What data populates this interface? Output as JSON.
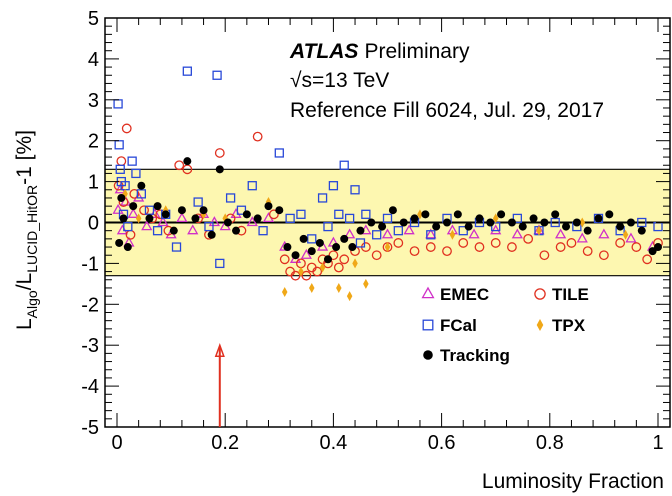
{
  "chart_data": {
    "type": "scatter",
    "title": "",
    "xlabel": "Luminosity Fraction",
    "ylabel": {
      "base": "L",
      "sub1": "Algo",
      "mid": "/L",
      "sub2": "LUCID_HitOR",
      "tail": "-1 [%]"
    },
    "xlim": [
      0,
      1
    ],
    "ylim": [
      -5,
      5
    ],
    "x_ticks": [
      "0",
      "0.2",
      "0.4",
      "0.6",
      "0.8",
      "1"
    ],
    "y_ticks": [
      "-5",
      "-4",
      "-3",
      "-2",
      "-1",
      "0",
      "1",
      "2",
      "3",
      "4",
      "5"
    ],
    "grid": false,
    "legend_position": "bottom-right",
    "band": {
      "ymin": -1.3,
      "ymax": 1.3,
      "color": "#fdf7b0"
    },
    "reference_line": 0,
    "arrow": {
      "x": 0.19,
      "y_from": -5,
      "y_to": -3,
      "color": "#e03020"
    },
    "annotations": {
      "experiment": "ATLAS",
      "status": "Preliminary",
      "energy_sqrt": "√",
      "energy_rest": "s=13 TeV",
      "fill": "Reference Fill 6024, Jul. 29, 2017"
    },
    "series": [
      {
        "name": "EMEC",
        "marker": "triangle",
        "color": "#d030c8",
        "points": [
          [
            0.002,
            0.3
          ],
          [
            0.006,
            0.8
          ],
          [
            0.01,
            -0.2
          ],
          [
            0.016,
            0.5
          ],
          [
            0.022,
            -0.5
          ],
          [
            0.03,
            0.2
          ],
          [
            0.04,
            0.6
          ],
          [
            0.055,
            -0.1
          ],
          [
            0.07,
            0.2
          ],
          [
            0.085,
            0.0
          ],
          [
            0.1,
            -0.3
          ],
          [
            0.12,
            0.1
          ],
          [
            0.14,
            -0.2
          ],
          [
            0.16,
            0.2
          ],
          [
            0.18,
            0.0
          ],
          [
            0.2,
            -0.1
          ],
          [
            0.22,
            0.2
          ],
          [
            0.25,
            0.0
          ],
          [
            0.28,
            0.1
          ],
          [
            0.31,
            -0.6
          ],
          [
            0.33,
            -0.9
          ],
          [
            0.35,
            -0.8
          ],
          [
            0.38,
            -0.6
          ],
          [
            0.4,
            -0.5
          ],
          [
            0.43,
            -0.3
          ],
          [
            0.46,
            -0.2
          ],
          [
            0.5,
            -0.3
          ],
          [
            0.54,
            -0.2
          ],
          [
            0.58,
            -0.3
          ],
          [
            0.62,
            -0.2
          ],
          [
            0.66,
            -0.3
          ],
          [
            0.7,
            -0.2
          ],
          [
            0.74,
            -0.3
          ],
          [
            0.78,
            -0.2
          ],
          [
            0.82,
            -0.3
          ],
          [
            0.86,
            -0.4
          ],
          [
            0.9,
            -0.3
          ],
          [
            0.95,
            -0.4
          ],
          [
            0.99,
            -0.6
          ]
        ]
      },
      {
        "name": "TILE",
        "marker": "circle-open",
        "color": "#e03020",
        "points": [
          [
            0.003,
            0.9
          ],
          [
            0.008,
            1.5
          ],
          [
            0.012,
            0.5
          ],
          [
            0.018,
            2.3
          ],
          [
            0.025,
            -0.3
          ],
          [
            0.032,
            0.7
          ],
          [
            0.05,
            0.3
          ],
          [
            0.065,
            0.1
          ],
          [
            0.08,
            0.2
          ],
          [
            0.095,
            -0.2
          ],
          [
            0.115,
            1.4
          ],
          [
            0.13,
            1.3
          ],
          [
            0.15,
            0.1
          ],
          [
            0.17,
            -0.3
          ],
          [
            0.19,
            1.7
          ],
          [
            0.21,
            0.1
          ],
          [
            0.23,
            -0.2
          ],
          [
            0.26,
            2.1
          ],
          [
            0.29,
            0.2
          ],
          [
            0.31,
            -0.9
          ],
          [
            0.32,
            -1.2
          ],
          [
            0.33,
            -1.3
          ],
          [
            0.34,
            -1.0
          ],
          [
            0.35,
            -1.3
          ],
          [
            0.36,
            -1.1
          ],
          [
            0.37,
            -1.2
          ],
          [
            0.38,
            -0.9
          ],
          [
            0.39,
            -1.0
          ],
          [
            0.4,
            -0.8
          ],
          [
            0.41,
            -1.1
          ],
          [
            0.42,
            -0.9
          ],
          [
            0.44,
            -0.7
          ],
          [
            0.46,
            -0.6
          ],
          [
            0.48,
            -0.8
          ],
          [
            0.5,
            -0.6
          ],
          [
            0.52,
            -0.5
          ],
          [
            0.55,
            -0.7
          ],
          [
            0.58,
            -0.6
          ],
          [
            0.61,
            -0.7
          ],
          [
            0.64,
            -0.5
          ],
          [
            0.67,
            -0.6
          ],
          [
            0.7,
            -0.5
          ],
          [
            0.73,
            -0.6
          ],
          [
            0.76,
            -0.4
          ],
          [
            0.79,
            -0.8
          ],
          [
            0.82,
            -0.6
          ],
          [
            0.84,
            -0.5
          ],
          [
            0.87,
            -0.7
          ],
          [
            0.9,
            -0.8
          ],
          [
            0.93,
            -0.5
          ],
          [
            0.96,
            -0.6
          ],
          [
            0.98,
            -0.9
          ],
          [
            1.0,
            -0.5
          ]
        ]
      },
      {
        "name": "FCal",
        "marker": "square-open",
        "color": "#2848d8",
        "points": [
          [
            0.002,
            2.9
          ],
          [
            0.004,
            1.9
          ],
          [
            0.006,
            1.3
          ],
          [
            0.008,
            1.0
          ],
          [
            0.012,
            0.2
          ],
          [
            0.015,
            0.9
          ],
          [
            0.02,
            -0.1
          ],
          [
            0.028,
            1.5
          ],
          [
            0.035,
            1.2
          ],
          [
            0.045,
            0.7
          ],
          [
            0.06,
            0.3
          ],
          [
            0.075,
            -0.2
          ],
          [
            0.09,
            0.2
          ],
          [
            0.11,
            -0.6
          ],
          [
            0.13,
            3.7
          ],
          [
            0.15,
            0.5
          ],
          [
            0.17,
            -0.1
          ],
          [
            0.185,
            3.6
          ],
          [
            0.19,
            -1.0
          ],
          [
            0.21,
            0.6
          ],
          [
            0.23,
            0.3
          ],
          [
            0.25,
            0.9
          ],
          [
            0.27,
            -0.2
          ],
          [
            0.3,
            1.7
          ],
          [
            0.32,
            0.1
          ],
          [
            0.34,
            0.2
          ],
          [
            0.36,
            -0.4
          ],
          [
            0.38,
            0.6
          ],
          [
            0.39,
            -0.1
          ],
          [
            0.4,
            0.9
          ],
          [
            0.41,
            0.2
          ],
          [
            0.42,
            1.4
          ],
          [
            0.43,
            0.1
          ],
          [
            0.44,
            0.8
          ],
          [
            0.45,
            -0.5
          ],
          [
            0.46,
            0.2
          ],
          [
            0.48,
            -0.3
          ],
          [
            0.5,
            0.1
          ],
          [
            0.52,
            -0.2
          ],
          [
            0.55,
            0.0
          ],
          [
            0.58,
            -0.3
          ],
          [
            0.61,
            0.1
          ],
          [
            0.64,
            -0.2
          ],
          [
            0.67,
            0.0
          ],
          [
            0.7,
            -0.1
          ],
          [
            0.74,
            0.1
          ],
          [
            0.78,
            -0.2
          ],
          [
            0.81,
            0.0
          ],
          [
            0.85,
            -0.1
          ],
          [
            0.89,
            0.1
          ],
          [
            0.93,
            -0.2
          ],
          [
            0.97,
            0.0
          ],
          [
            1.0,
            -0.1
          ]
        ]
      },
      {
        "name": "TPX",
        "marker": "diamond",
        "color": "#f0a818",
        "points": [
          [
            0.015,
            0.7
          ],
          [
            0.04,
            0.1
          ],
          [
            0.09,
            0.3
          ],
          [
            0.16,
            0.2
          ],
          [
            0.2,
            0.1
          ],
          [
            0.28,
            0.5
          ],
          [
            0.31,
            -1.7
          ],
          [
            0.36,
            -1.6
          ],
          [
            0.41,
            -1.6
          ],
          [
            0.43,
            -1.8
          ],
          [
            0.46,
            -1.5
          ],
          [
            0.34,
            -1.2
          ],
          [
            0.38,
            -1.1
          ],
          [
            0.44,
            -1.0
          ],
          [
            0.5,
            -0.6
          ],
          [
            0.56,
            0.2
          ],
          [
            0.62,
            -0.3
          ],
          [
            0.7,
            0.1
          ],
          [
            0.78,
            -0.2
          ],
          [
            0.86,
            0.0
          ],
          [
            0.94,
            -0.3
          ]
        ]
      },
      {
        "name": "Tracking",
        "marker": "circle-filled",
        "color": "#000000",
        "points": [
          [
            0.004,
            -0.5
          ],
          [
            0.008,
            0.6
          ],
          [
            0.012,
            0.1
          ],
          [
            0.02,
            -0.6
          ],
          [
            0.03,
            0.4
          ],
          [
            0.045,
            0.9
          ],
          [
            0.06,
            0.1
          ],
          [
            0.075,
            0.4
          ],
          [
            0.09,
            0.2
          ],
          [
            0.105,
            -0.2
          ],
          [
            0.12,
            0.3
          ],
          [
            0.13,
            1.5
          ],
          [
            0.145,
            0.1
          ],
          [
            0.16,
            0.3
          ],
          [
            0.175,
            -0.3
          ],
          [
            0.19,
            1.3
          ],
          [
            0.205,
            0.0
          ],
          [
            0.22,
            -0.2
          ],
          [
            0.24,
            0.2
          ],
          [
            0.26,
            0.1
          ],
          [
            0.28,
            0.4
          ],
          [
            0.3,
            0.3
          ],
          [
            0.315,
            -0.6
          ],
          [
            0.33,
            -0.8
          ],
          [
            0.345,
            -0.4
          ],
          [
            0.36,
            -0.7
          ],
          [
            0.375,
            -0.5
          ],
          [
            0.39,
            -0.9
          ],
          [
            0.405,
            -0.6
          ],
          [
            0.42,
            -0.4
          ],
          [
            0.435,
            -0.6
          ],
          [
            0.45,
            -0.2
          ],
          [
            0.47,
            0.0
          ],
          [
            0.49,
            -0.1
          ],
          [
            0.51,
            0.3
          ],
          [
            0.53,
            0.0
          ],
          [
            0.55,
            0.1
          ],
          [
            0.57,
            0.2
          ],
          [
            0.59,
            -0.1
          ],
          [
            0.61,
            0.0
          ],
          [
            0.63,
            0.2
          ],
          [
            0.65,
            -0.1
          ],
          [
            0.67,
            0.1
          ],
          [
            0.69,
            0.0
          ],
          [
            0.71,
            0.2
          ],
          [
            0.73,
            0.0
          ],
          [
            0.75,
            -0.1
          ],
          [
            0.77,
            0.1
          ],
          [
            0.79,
            0.0
          ],
          [
            0.81,
            0.2
          ],
          [
            0.83,
            -0.1
          ],
          [
            0.85,
            0.0
          ],
          [
            0.87,
            -0.2
          ],
          [
            0.89,
            0.1
          ],
          [
            0.91,
            0.2
          ],
          [
            0.93,
            -0.1
          ],
          [
            0.95,
            0.0
          ],
          [
            0.97,
            -0.2
          ],
          [
            0.99,
            -0.7
          ],
          [
            1.0,
            -0.6
          ]
        ]
      }
    ]
  }
}
